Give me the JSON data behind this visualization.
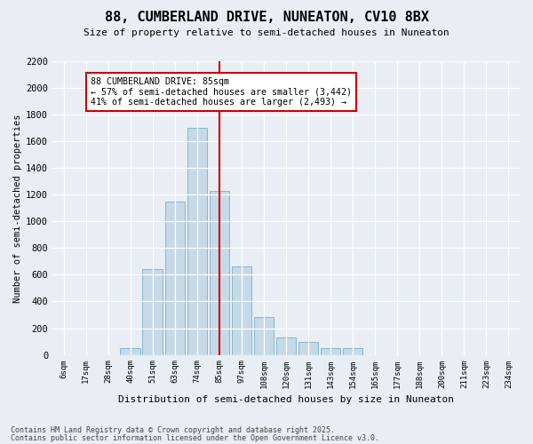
{
  "title1": "88, CUMBERLAND DRIVE, NUNEATON, CV10 8BX",
  "title2": "Size of property relative to semi-detached houses in Nuneaton",
  "xlabel": "Distribution of semi-detached houses by size in Nuneaton",
  "ylabel": "Number of semi-detached properties",
  "bin_labels": [
    "6sqm",
    "17sqm",
    "28sqm",
    "40sqm",
    "51sqm",
    "63sqm",
    "74sqm",
    "85sqm",
    "97sqm",
    "108sqm",
    "120sqm",
    "131sqm",
    "143sqm",
    "154sqm",
    "165sqm",
    "177sqm",
    "188sqm",
    "200sqm",
    "211sqm",
    "223sqm",
    "234sqm"
  ],
  "bar_heights": [
    0,
    0,
    0,
    50,
    640,
    1150,
    1700,
    1230,
    660,
    280,
    130,
    100,
    50,
    50,
    0,
    0,
    0,
    0,
    0,
    0,
    0
  ],
  "bar_color": "#c6d9e8",
  "bar_edge_color": "#7aafc8",
  "vline_x": 7,
  "vline_color": "#cc0000",
  "annotation_title": "88 CUMBERLAND DRIVE: 85sqm",
  "annotation_line1": "← 57% of semi-detached houses are smaller (3,442)",
  "annotation_line2": "41% of semi-detached houses are larger (2,493) →",
  "annotation_box_facecolor": "#ffffff",
  "annotation_border_color": "#cc0000",
  "ylim": [
    0,
    2200
  ],
  "yticks": [
    0,
    200,
    400,
    600,
    800,
    1000,
    1200,
    1400,
    1600,
    1800,
    2000,
    2200
  ],
  "bg_color": "#e8eef4",
  "plot_bg_color": "#e8eef4",
  "grid_color": "#ffffff",
  "footer1": "Contains HM Land Registry data © Crown copyright and database right 2025.",
  "footer2": "Contains public sector information licensed under the Open Government Licence v3.0."
}
